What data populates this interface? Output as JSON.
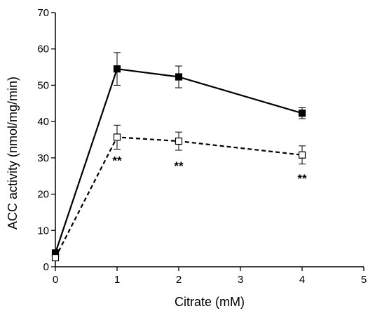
{
  "chart_data": {
    "type": "line",
    "xlabel": "Citrate (mM)",
    "ylabel": "ACC activity (nmol/mg/min)",
    "xlim": [
      0,
      5
    ],
    "ylim": [
      0,
      70
    ],
    "xticks": [
      0,
      1,
      2,
      3,
      4,
      5
    ],
    "yticks": [
      0,
      10,
      20,
      30,
      40,
      50,
      60,
      70
    ],
    "grid": false,
    "legend": "none",
    "series": [
      {
        "style": "solid",
        "marker": "filled-square",
        "color": "#000000",
        "x": [
          0,
          1,
          2,
          4
        ],
        "y": [
          3.8,
          54.5,
          52.3,
          42.3
        ],
        "error": [
          0,
          4.5,
          3.0,
          1.5
        ]
      },
      {
        "style": "dashed",
        "marker": "open-square",
        "color": "#000000",
        "x": [
          0,
          1,
          2,
          4
        ],
        "y": [
          2.5,
          35.7,
          34.6,
          30.8
        ],
        "error": [
          0,
          3.3,
          2.5,
          2.5
        ]
      }
    ],
    "annotations": [
      {
        "text": "**",
        "x": 1,
        "y": 30.5
      },
      {
        "text": "**",
        "x": 2,
        "y": 29.0
      },
      {
        "text": "**",
        "x": 4,
        "y": 25.5
      }
    ]
  }
}
